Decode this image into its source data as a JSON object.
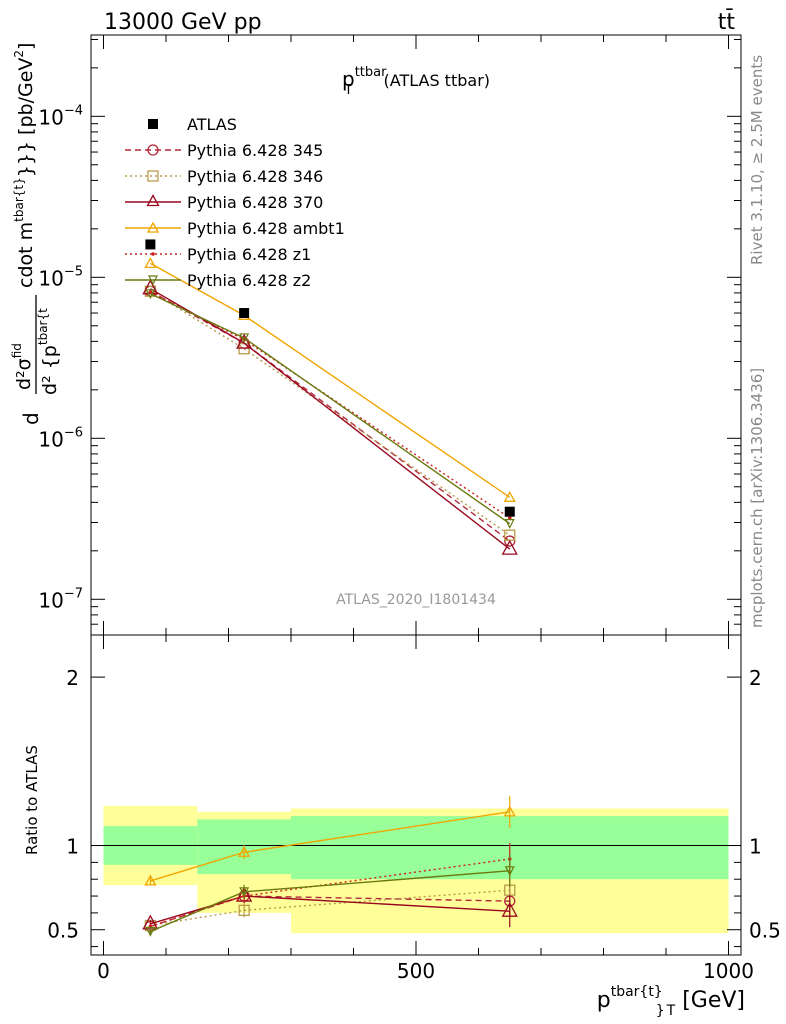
{
  "header": {
    "beam": "13000 GeV pp",
    "process": "tt̄",
    "side_label": "Rivet 3.1.10, ≥ 2.5M events",
    "side_url": "mcplots.cern.ch [arXiv:1306.3436]"
  },
  "colors": {
    "ATLAS": "#000000",
    "p345": "#b2283a",
    "p346": "#b89a4a",
    "p370": "#99081f",
    "ambt1": "#f0a500",
    "z1": "#cc2020",
    "z2": "#6a7a10",
    "band_outer": "#ffff99",
    "band_inner": "#99ff99",
    "watermark": "#999999"
  },
  "chart_data": [
    {
      "type": "line",
      "title_main": "p",
      "title_sup": "ttbar",
      "title_sub": "T",
      "title_rest": " (ATLAS ttbar)",
      "ylabel_text": "d²σ / d²{p_T^tbar{t}} cdot m^{tbar{t}}}} [pb/GeV²]",
      "ylabel_d": "d",
      "ylabel_num": "d²σ",
      "ylabel_num_sup": "fid",
      "ylabel_den": "d² {p",
      "ylabel_den_sup": "tbar{t",
      "ylabel_unit": "cdot m",
      "ylabel_unit_sup": "tbar{t}",
      "ylabel_unit_end": "}}} [pb/GeV",
      "ylabel_unit_pow": "2",
      "ylabel_close": "]",
      "yscale": "log",
      "ylim": [
        6e-08,
        0.00032
      ],
      "xlim": [
        -20,
        1020
      ],
      "ytick_labels": [
        {
          "base": "10",
          "exp": "−4"
        },
        {
          "base": "10",
          "exp": "−5"
        },
        {
          "base": "10",
          "exp": "−6"
        },
        {
          "base": "10",
          "exp": "−7"
        }
      ],
      "ytick_values": [
        0.0001,
        1e-05,
        1e-06,
        1e-07
      ],
      "watermark": "ATLAS_2020_I1801434",
      "x": [
        75,
        225,
        650
      ],
      "data": {
        "name": "ATLAS",
        "values": [
          1.6e-05,
          6e-06,
          3.5e-07
        ]
      },
      "series": [
        {
          "name": "Pythia 6.428 345",
          "key": "p345",
          "marker": "circle",
          "dash": "6,4",
          "values": [
            8.2e-06,
            3.9e-06,
            2.3e-07
          ]
        },
        {
          "name": "Pythia 6.428 346",
          "key": "p346",
          "marker": "square",
          "dash": "2,3",
          "values": [
            8.2e-06,
            3.6e-06,
            2.5e-07
          ]
        },
        {
          "name": "Pythia 6.428 370",
          "key": "p370",
          "marker": "triangle",
          "dash": "",
          "values": [
            8.5e-06,
            3.9e-06,
            2.05e-07
          ]
        },
        {
          "name": "Pythia 6.428 ambt1",
          "key": "ambt1",
          "marker": "triangle-small",
          "dash": "",
          "values": [
            1.22e-05,
            5.8e-06,
            4.3e-07
          ]
        },
        {
          "name": "Pythia 6.428 z1",
          "key": "z1",
          "marker": "dot",
          "dash": "2,3",
          "values": [
            8.1e-06,
            4.1e-06,
            3.2e-07
          ]
        },
        {
          "name": "Pythia 6.428 z2",
          "key": "z2",
          "marker": "triangle-down",
          "dash": "",
          "values": [
            7.9e-06,
            4.2e-06,
            2.95e-07
          ]
        }
      ]
    },
    {
      "type": "line",
      "ylabel": "Ratio to ATLAS",
      "ylim": [
        0.35,
        2.25
      ],
      "ytick_labels": [
        "2",
        "1",
        "0.5"
      ],
      "ytick_values": [
        2,
        1,
        0.5
      ],
      "xlabel_main": "p",
      "xlabel_sup": "tbar{t}",
      "xlabel_sub": "}",
      "xlabel_sub2": "T",
      "xlabel_rest": " [GeV]",
      "xtick_labels": [
        "0",
        "500",
        "1000"
      ],
      "xtick_values": [
        0,
        500,
        1000
      ],
      "bins": [
        {
          "lo": 0,
          "hi": 150,
          "inner": [
            0.885,
            1.115
          ],
          "outer": [
            0.765,
            1.235
          ]
        },
        {
          "lo": 150,
          "hi": 300,
          "inner": [
            0.83,
            1.155
          ],
          "outer": [
            0.6,
            1.2
          ]
        },
        {
          "lo": 300,
          "hi": 1000,
          "inner": [
            0.8,
            1.175
          ],
          "outer": [
            0.48,
            1.22
          ]
        }
      ],
      "x": [
        75,
        225,
        650
      ],
      "series": [
        {
          "key": "p345",
          "marker": "circle",
          "dash": "6,4",
          "values": [
            0.52,
            0.7,
            0.67
          ]
        },
        {
          "key": "p346",
          "marker": "square",
          "dash": "2,3",
          "values": [
            0.525,
            0.615,
            0.735
          ]
        },
        {
          "key": "p370",
          "marker": "triangle",
          "dash": "",
          "values": [
            0.535,
            0.7,
            0.61
          ]
        },
        {
          "key": "ambt1",
          "marker": "triangle-small",
          "dash": "",
          "values": [
            0.79,
            0.96,
            1.2
          ]
        },
        {
          "key": "z1",
          "marker": "dot",
          "dash": "2,3",
          "values": [
            0.52,
            0.7,
            0.92
          ]
        },
        {
          "key": "z2",
          "marker": "triangle-down",
          "dash": "",
          "values": [
            0.49,
            0.725,
            0.85
          ]
        }
      ]
    }
  ]
}
